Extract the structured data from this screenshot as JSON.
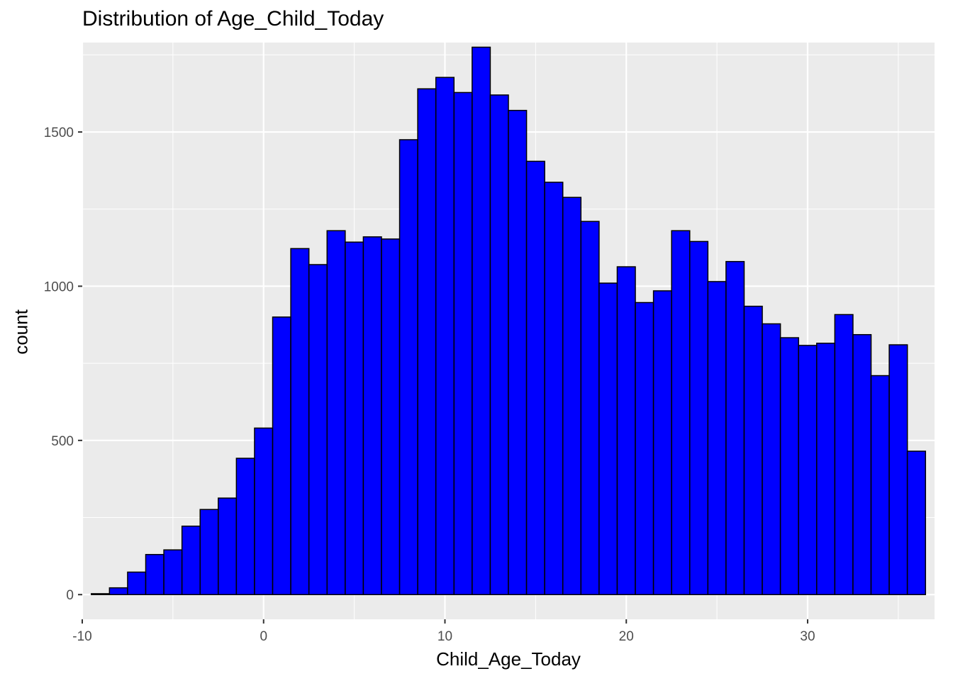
{
  "chart_data": {
    "type": "bar",
    "title": "Distribution of Age_Child_Today",
    "xlabel": "Child_Age_Today",
    "ylabel": "count",
    "xlim": [
      -10,
      37
    ],
    "ylim": [
      -80,
      1790
    ],
    "x_ticks": [
      -10,
      0,
      10,
      20,
      30
    ],
    "y_ticks": [
      0,
      500,
      1000,
      1500
    ],
    "bin_width": 1,
    "first_bin_left": -9.5,
    "bar_fill": "#0000ff",
    "bar_stroke": "#000000",
    "panel_background": "#ebebeb",
    "grid": true,
    "values": [
      3,
      22,
      73,
      130,
      145,
      222,
      276,
      313,
      442,
      540,
      900,
      1122,
      1070,
      1180,
      1143,
      1160,
      1153,
      1475,
      1640,
      1677,
      1628,
      1775,
      1620,
      1570,
      1405,
      1337,
      1288,
      1210,
      1010,
      1063,
      947,
      985,
      1180,
      1145,
      1015,
      1080,
      935,
      878,
      833,
      808,
      815,
      908,
      843,
      710,
      810,
      465
    ]
  }
}
